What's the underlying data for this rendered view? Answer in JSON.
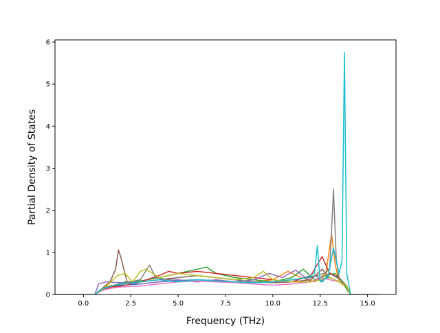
{
  "chart_data": {
    "type": "line",
    "title": "",
    "xlabel": "Frequency (THz)",
    "ylabel": "Partial Density of States",
    "xlim": [
      -1.5,
      16.5
    ],
    "ylim": [
      0,
      6.05
    ],
    "x_ticks": [
      {
        "value": 0.0,
        "label": "0.0"
      },
      {
        "value": 2.5,
        "label": "2.5"
      },
      {
        "value": 5.0,
        "label": "5.0"
      },
      {
        "value": 7.5,
        "label": "7.5"
      },
      {
        "value": 10.0,
        "label": "10.0"
      },
      {
        "value": 12.5,
        "label": "12.5"
      },
      {
        "value": 15.0,
        "label": "15.0"
      }
    ],
    "y_ticks": [
      {
        "value": 0,
        "label": "0"
      },
      {
        "value": 1,
        "label": "1"
      },
      {
        "value": 2,
        "label": "2"
      },
      {
        "value": 3,
        "label": "3"
      },
      {
        "value": 4,
        "label": "4"
      },
      {
        "value": 5,
        "label": "5"
      },
      {
        "value": 6,
        "label": "6"
      }
    ],
    "grid": false,
    "legend": "none",
    "series": [
      {
        "color": "#1f77b4",
        "x": [
          -1.5,
          0.6,
          0.8,
          1.2,
          2.0,
          3.0,
          4.0,
          5.0,
          6.0,
          7.0,
          8.0,
          9.0,
          10.0,
          11.0,
          11.8,
          12.3,
          12.6,
          13.0,
          13.4,
          13.7,
          13.9,
          14.1,
          15.5
        ],
        "y": [
          0,
          0,
          0.08,
          0.18,
          0.22,
          0.25,
          0.3,
          0.33,
          0.35,
          0.33,
          0.3,
          0.28,
          0.3,
          0.35,
          0.4,
          0.45,
          0.3,
          0.5,
          0.4,
          0.3,
          0.2,
          0,
          0
        ]
      },
      {
        "color": "#ff7f0e",
        "x": [
          -1.5,
          0.6,
          0.9,
          1.3,
          2.0,
          3.0,
          4.0,
          5.0,
          6.0,
          7.0,
          8.0,
          9.0,
          10.0,
          10.8,
          11.5,
          12.2,
          12.8,
          13.1,
          13.3,
          13.5,
          13.8,
          14.1,
          15.5
        ],
        "y": [
          0,
          0,
          0.1,
          0.2,
          0.25,
          0.3,
          0.35,
          0.4,
          0.45,
          0.4,
          0.35,
          0.3,
          0.35,
          0.55,
          0.4,
          0.3,
          0.5,
          1.43,
          0.7,
          0.3,
          0.2,
          0,
          0
        ]
      },
      {
        "color": "#2ca02c",
        "x": [
          -1.5,
          0.6,
          1.0,
          1.5,
          2.2,
          3.0,
          4.0,
          5.0,
          6.0,
          6.5,
          7.0,
          8.0,
          9.0,
          10.0,
          11.0,
          11.6,
          12.2,
          12.8,
          13.3,
          13.8,
          14.1,
          15.5
        ],
        "y": [
          0,
          0,
          0.12,
          0.2,
          0.3,
          0.32,
          0.4,
          0.5,
          0.6,
          0.65,
          0.5,
          0.4,
          0.35,
          0.3,
          0.4,
          0.6,
          0.35,
          0.45,
          0.5,
          0.2,
          0,
          0
        ]
      },
      {
        "color": "#d62728",
        "x": [
          -1.5,
          0.6,
          1.0,
          1.5,
          2.0,
          3.0,
          4.0,
          4.5,
          5.0,
          6.0,
          7.0,
          8.0,
          9.0,
          10.0,
          11.0,
          12.0,
          12.6,
          13.0,
          13.5,
          13.9,
          14.1,
          15.5
        ],
        "y": [
          0,
          0,
          0.1,
          0.18,
          0.2,
          0.3,
          0.45,
          0.55,
          0.5,
          0.55,
          0.5,
          0.45,
          0.4,
          0.35,
          0.3,
          0.45,
          0.9,
          0.5,
          0.4,
          0.2,
          0,
          0
        ]
      },
      {
        "color": "#9467bd",
        "x": [
          -1.5,
          0.6,
          0.8,
          1.2,
          2.0,
          3.0,
          4.0,
          5.0,
          6.0,
          7.0,
          8.0,
          9.0,
          9.8,
          10.5,
          11.2,
          12.0,
          12.5,
          13.0,
          13.5,
          13.9,
          14.1,
          15.5
        ],
        "y": [
          0,
          0,
          0.25,
          0.3,
          0.28,
          0.25,
          0.3,
          0.35,
          0.3,
          0.35,
          0.3,
          0.35,
          0.5,
          0.4,
          0.58,
          0.3,
          0.35,
          0.4,
          0.3,
          0.2,
          0,
          0
        ]
      },
      {
        "color": "#8c564b",
        "x": [
          -1.5,
          0.6,
          1.0,
          1.4,
          1.7,
          1.85,
          2.0,
          2.3,
          3.0,
          4.0,
          5.0,
          6.0,
          7.0,
          8.0,
          9.0,
          10.0,
          11.0,
          12.0,
          12.6,
          13.0,
          13.5,
          13.9,
          14.1,
          15.5
        ],
        "y": [
          0,
          0,
          0.15,
          0.3,
          0.6,
          1.06,
          0.85,
          0.3,
          0.3,
          0.35,
          0.4,
          0.45,
          0.4,
          0.35,
          0.3,
          0.28,
          0.3,
          0.35,
          0.6,
          0.4,
          0.3,
          0.2,
          0,
          0
        ]
      },
      {
        "color": "#e377c2",
        "x": [
          -1.5,
          0.6,
          1.0,
          1.5,
          2.0,
          3.0,
          4.0,
          5.0,
          6.0,
          7.0,
          8.0,
          9.0,
          10.0,
          11.0,
          12.0,
          12.5,
          13.0,
          13.5,
          13.9,
          14.1,
          15.5
        ],
        "y": [
          0,
          0,
          0.1,
          0.15,
          0.18,
          0.2,
          0.25,
          0.3,
          0.32,
          0.3,
          0.28,
          0.25,
          0.22,
          0.25,
          0.3,
          0.4,
          0.35,
          0.3,
          0.2,
          0,
          0
        ]
      },
      {
        "color": "#7f7f7f",
        "x": [
          -1.5,
          0.6,
          1.0,
          1.5,
          2.0,
          3.0,
          3.5,
          3.8,
          4.5,
          5.0,
          6.0,
          7.0,
          8.0,
          9.0,
          10.0,
          11.0,
          12.0,
          12.7,
          13.0,
          13.2,
          13.35,
          13.5,
          13.9,
          14.1,
          15.5
        ],
        "y": [
          0,
          0,
          0.12,
          0.2,
          0.25,
          0.35,
          0.7,
          0.4,
          0.35,
          0.4,
          0.45,
          0.4,
          0.35,
          0.3,
          0.3,
          0.35,
          0.4,
          0.5,
          0.6,
          2.5,
          0.8,
          0.4,
          0.2,
          0,
          0
        ]
      },
      {
        "color": "#bcbd22",
        "x": [
          -1.5,
          0.6,
          1.2,
          1.8,
          2.2,
          2.6,
          3.0,
          3.3,
          4.0,
          5.0,
          6.0,
          7.0,
          8.0,
          9.0,
          9.5,
          10.0,
          11.0,
          12.0,
          12.6,
          13.0,
          13.5,
          13.9,
          14.1,
          15.5
        ],
        "y": [
          0,
          0,
          0.2,
          0.45,
          0.5,
          0.3,
          0.55,
          0.6,
          0.4,
          0.5,
          0.45,
          0.4,
          0.35,
          0.4,
          0.55,
          0.35,
          0.3,
          0.3,
          0.35,
          0.4,
          0.3,
          0.2,
          0,
          0
        ]
      },
      {
        "color": "#17becf",
        "x": [
          -1.5,
          0.6,
          1.0,
          1.5,
          2.0,
          3.0,
          4.0,
          5.0,
          6.0,
          7.0,
          8.0,
          9.0,
          10.0,
          11.0,
          11.8,
          12.2,
          12.35,
          12.5,
          12.9,
          13.2,
          13.5,
          13.65,
          13.78,
          13.9,
          14.1,
          15.5
        ],
        "y": [
          0,
          0,
          0.15,
          0.2,
          0.25,
          0.3,
          0.35,
          0.3,
          0.35,
          0.32,
          0.3,
          0.28,
          0.3,
          0.35,
          0.4,
          0.5,
          1.16,
          0.3,
          0.4,
          1.1,
          0.5,
          0.8,
          5.75,
          0.5,
          0,
          0
        ]
      }
    ]
  }
}
